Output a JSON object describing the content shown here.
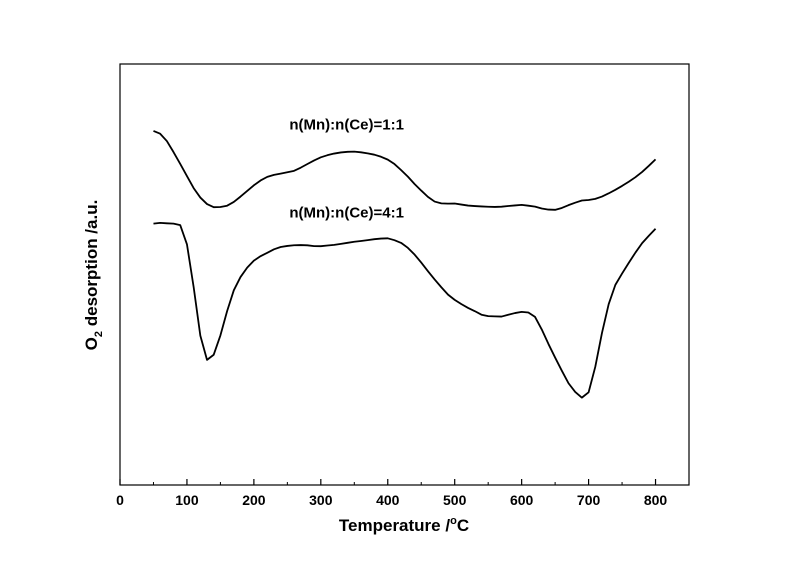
{
  "chart_data": {
    "type": "line",
    "title": "",
    "xlabel": "Temperature /°C",
    "ylabel": "O2 desorption /a.u.",
    "ylabel_parts": {
      "pre": "O",
      "sub": "2",
      "post": " desorption /a.u."
    },
    "xlabel_parts": {
      "pre": "Temperature /",
      "sup": "o",
      "post": "C"
    },
    "xlim": [
      0,
      850
    ],
    "ylim": [
      0,
      1
    ],
    "x_ticks": [
      0,
      100,
      200,
      300,
      400,
      500,
      600,
      700,
      800
    ],
    "y_ticks_shown": false,
    "grid": false,
    "line_color": "#000000",
    "series": [
      {
        "name": "n(Mn):n(Ce)=1:1",
        "x": [
          50,
          60,
          70,
          80,
          90,
          100,
          110,
          120,
          130,
          140,
          150,
          160,
          170,
          180,
          190,
          200,
          210,
          220,
          230,
          240,
          250,
          260,
          270,
          280,
          290,
          300,
          310,
          320,
          330,
          340,
          350,
          360,
          370,
          380,
          390,
          400,
          410,
          420,
          430,
          440,
          450,
          460,
          470,
          480,
          490,
          500,
          510,
          520,
          530,
          540,
          550,
          560,
          570,
          580,
          590,
          600,
          610,
          620,
          630,
          640,
          650,
          660,
          670,
          680,
          690,
          700,
          710,
          720,
          730,
          740,
          750,
          760,
          770,
          780,
          790,
          800
        ],
        "y": [
          0.841,
          0.835,
          0.818,
          0.792,
          0.764,
          0.735,
          0.706,
          0.683,
          0.667,
          0.659,
          0.659,
          0.662,
          0.671,
          0.684,
          0.698,
          0.712,
          0.724,
          0.733,
          0.738,
          0.741,
          0.744,
          0.747,
          0.754,
          0.762,
          0.77,
          0.777,
          0.782,
          0.786,
          0.789,
          0.791,
          0.792,
          0.791,
          0.789,
          0.786,
          0.781,
          0.774,
          0.763,
          0.748,
          0.732,
          0.714,
          0.698,
          0.683,
          0.672,
          0.668,
          0.668,
          0.669,
          0.667,
          0.665,
          0.664,
          0.663,
          0.662,
          0.661,
          0.661,
          0.662,
          0.663,
          0.664,
          0.662,
          0.66,
          0.656,
          0.654,
          0.654,
          0.659,
          0.666,
          0.672,
          0.677,
          0.678,
          0.68,
          0.685,
          0.692,
          0.7,
          0.709,
          0.719,
          0.73,
          0.743,
          0.758,
          0.774
        ]
      },
      {
        "name": "n(Mn):n(Ce)=4:1",
        "x": [
          50,
          60,
          70,
          80,
          90,
          100,
          110,
          120,
          130,
          140,
          150,
          160,
          170,
          180,
          190,
          200,
          210,
          220,
          230,
          240,
          250,
          260,
          270,
          280,
          290,
          300,
          310,
          320,
          330,
          340,
          350,
          360,
          370,
          380,
          390,
          400,
          410,
          420,
          430,
          440,
          450,
          460,
          470,
          480,
          490,
          500,
          510,
          520,
          530,
          540,
          550,
          560,
          570,
          580,
          590,
          600,
          610,
          620,
          630,
          640,
          650,
          660,
          670,
          680,
          690,
          700,
          710,
          720,
          730,
          740,
          750,
          760,
          770,
          780,
          790,
          800
        ],
        "y": [
          0.622,
          0.624,
          0.623,
          0.622,
          0.618,
          0.572,
          0.47,
          0.354,
          0.296,
          0.308,
          0.354,
          0.412,
          0.462,
          0.494,
          0.517,
          0.534,
          0.545,
          0.553,
          0.561,
          0.566,
          0.568,
          0.569,
          0.569,
          0.568,
          0.566,
          0.566,
          0.568,
          0.57,
          0.573,
          0.576,
          0.579,
          0.581,
          0.583,
          0.585,
          0.586,
          0.586,
          0.581,
          0.574,
          0.562,
          0.546,
          0.527,
          0.507,
          0.488,
          0.47,
          0.453,
          0.441,
          0.431,
          0.422,
          0.414,
          0.405,
          0.401,
          0.4,
          0.399,
          0.403,
          0.407,
          0.41,
          0.409,
          0.399,
          0.37,
          0.336,
          0.304,
          0.273,
          0.243,
          0.222,
          0.208,
          0.22,
          0.28,
          0.36,
          0.428,
          0.474,
          0.501,
          0.527,
          0.552,
          0.575,
          0.593,
          0.61
        ]
      }
    ],
    "annotations": [
      {
        "text": "n(Mn):n(Ce)=1:1",
        "x": 253,
        "y": 0.845
      },
      {
        "text": "n(Mn):n(Ce)=4:1",
        "x": 253,
        "y": 0.635
      }
    ]
  }
}
